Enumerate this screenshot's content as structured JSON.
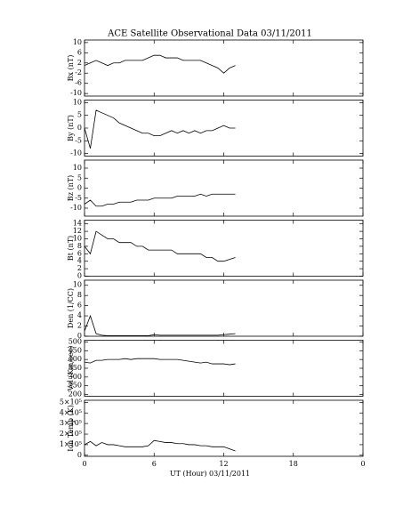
{
  "chart_data": [
    {
      "type": "line",
      "title": "ACE Satellite Observational Data   03/11/2011",
      "ylabel": "Bx (nT)",
      "color": "#000000",
      "xlim": [
        0,
        24
      ],
      "ylim": [
        -11,
        11
      ],
      "yticks": [
        10,
        6,
        2,
        -2,
        -6,
        -10
      ],
      "x": [
        0,
        0.5,
        1,
        1.5,
        2,
        2.5,
        3,
        3.5,
        4,
        4.5,
        5,
        5.5,
        6,
        6.5,
        7,
        7.5,
        8,
        8.5,
        9,
        9.5,
        10,
        10.5,
        11,
        11.5,
        12,
        12.5,
        13
      ],
      "values": [
        1,
        2,
        3,
        2,
        1,
        2,
        2,
        3,
        3,
        3,
        3,
        4,
        5,
        5,
        4,
        4,
        4,
        3,
        3,
        3,
        3,
        2,
        1,
        0,
        -2,
        0,
        1
      ]
    },
    {
      "type": "line",
      "ylabel": "By (nT)",
      "color": "#000000",
      "xlim": [
        0,
        24
      ],
      "ylim": [
        -11,
        11
      ],
      "yticks": [
        10,
        5,
        0,
        -5,
        -10
      ],
      "x": [
        0,
        0.5,
        1,
        1.5,
        2,
        2.5,
        3,
        3.5,
        4,
        4.5,
        5,
        5.5,
        6,
        6.5,
        7,
        7.5,
        8,
        8.5,
        9,
        9.5,
        10,
        10.5,
        11,
        11.5,
        12,
        12.5,
        13
      ],
      "values": [
        0,
        -8,
        7,
        6,
        5,
        4,
        2,
        1,
        0,
        -1,
        -2,
        -2,
        -3,
        -3,
        -2,
        -1,
        -2,
        -1,
        -2,
        -1,
        -2,
        -1,
        -1,
        0,
        1,
        0,
        0
      ]
    },
    {
      "type": "line",
      "ylabel": "Bz (nT)",
      "color": "#000000",
      "xlim": [
        0,
        24
      ],
      "ylim": [
        -14,
        14
      ],
      "yticks": [
        10,
        5,
        0,
        -5,
        -10
      ],
      "x": [
        0,
        0.5,
        1,
        1.5,
        2,
        2.5,
        3,
        3.5,
        4,
        4.5,
        5,
        5.5,
        6,
        6.5,
        7,
        7.5,
        8,
        8.5,
        9,
        9.5,
        10,
        10.5,
        11,
        11.5,
        12,
        12.5,
        13
      ],
      "values": [
        -8,
        -6,
        -9,
        -9,
        -8,
        -8,
        -7,
        -7,
        -7,
        -6,
        -6,
        -6,
        -5,
        -5,
        -5,
        -5,
        -4,
        -4,
        -4,
        -4,
        -3,
        -4,
        -3,
        -3,
        -3,
        -3,
        -3
      ]
    },
    {
      "type": "line",
      "ylabel": "Bt (nT)",
      "color": "#000000",
      "xlim": [
        0,
        24
      ],
      "ylim": [
        0,
        15
      ],
      "yticks": [
        0,
        2,
        4,
        6,
        8,
        10,
        12,
        14
      ],
      "x": [
        0,
        0.5,
        1,
        1.5,
        2,
        2.5,
        3,
        3.5,
        4,
        4.5,
        5,
        5.5,
        6,
        6.5,
        7,
        7.5,
        8,
        8.5,
        9,
        9.5,
        10,
        10.5,
        11,
        11.5,
        12,
        12.5,
        13
      ],
      "values": [
        8,
        6,
        12,
        11,
        10,
        10,
        9,
        9,
        9,
        8,
        8,
        7,
        7,
        7,
        7,
        7,
        6,
        6,
        6,
        6,
        6,
        5,
        5,
        4,
        4,
        4.5,
        5
      ]
    },
    {
      "type": "line",
      "ylabel": "Den (1/CC)",
      "color": "#000000",
      "xlim": [
        0,
        24
      ],
      "ylim": [
        0,
        11
      ],
      "yticks": [
        0,
        2,
        4,
        6,
        8,
        10
      ],
      "x": [
        0,
        0.5,
        1,
        1.5,
        2,
        2.5,
        3,
        3.5,
        4,
        4.5,
        5,
        5.5,
        6,
        6.5,
        7,
        7.5,
        8,
        8.5,
        9,
        9.5,
        10,
        10.5,
        11,
        11.5,
        12,
        12.5,
        13
      ],
      "values": [
        1,
        4,
        0.5,
        0.2,
        0.1,
        0.1,
        0.1,
        0.1,
        0.1,
        0.1,
        0.1,
        0.1,
        0.3,
        0.2,
        0.2,
        0.2,
        0.2,
        0.2,
        0.2,
        0.2,
        0.2,
        0.2,
        0.2,
        0.2,
        0.3,
        0.4,
        0.5
      ]
    },
    {
      "type": "line",
      "ylabel": "Vel (Km/sec)",
      "color": "#000000",
      "xlim": [
        0,
        24
      ],
      "ylim": [
        190,
        510
      ],
      "yticks": [
        200,
        250,
        300,
        350,
        400,
        450,
        500
      ],
      "x": [
        0,
        0.5,
        1,
        1.5,
        2,
        2.5,
        3,
        3.5,
        4,
        4.5,
        5,
        5.5,
        6,
        6.5,
        7,
        7.5,
        8,
        8.5,
        9,
        9.5,
        10,
        10.5,
        11,
        11.5,
        12,
        12.5,
        13
      ],
      "values": [
        385,
        380,
        395,
        395,
        400,
        400,
        400,
        405,
        400,
        405,
        405,
        405,
        405,
        400,
        400,
        400,
        400,
        395,
        390,
        385,
        380,
        385,
        375,
        375,
        375,
        370,
        375
      ]
    },
    {
      "type": "line",
      "ylabel": "Ion Temp (K)",
      "xlabel": "UT (Hour)  03/11/2011",
      "color": "#000000",
      "xlim": [
        0,
        24
      ],
      "xticks": [
        0,
        6,
        12,
        18,
        {
          "value": 24,
          "label": "0"
        }
      ],
      "ylim": [
        -10000,
        520000
      ],
      "yticks": [
        0,
        {
          "value": 100000,
          "label": "1×10⁵"
        },
        {
          "value": 200000,
          "label": "2×10⁵"
        },
        {
          "value": 300000,
          "label": "3×10⁵"
        },
        {
          "value": 400000,
          "label": "4×10⁵"
        },
        {
          "value": 500000,
          "label": "5×10⁵"
        }
      ],
      "x": [
        0,
        0.5,
        1,
        1.5,
        2,
        2.5,
        3,
        3.5,
        4,
        4.5,
        5,
        5.5,
        6,
        6.5,
        7,
        7.5,
        8,
        8.5,
        9,
        9.5,
        10,
        10.5,
        11,
        11.5,
        12,
        12.5,
        13
      ],
      "values": [
        100000,
        130000,
        90000,
        120000,
        100000,
        100000,
        90000,
        80000,
        80000,
        80000,
        80000,
        90000,
        140000,
        130000,
        120000,
        120000,
        110000,
        110000,
        100000,
        100000,
        90000,
        90000,
        80000,
        80000,
        80000,
        60000,
        40000
      ]
    }
  ]
}
